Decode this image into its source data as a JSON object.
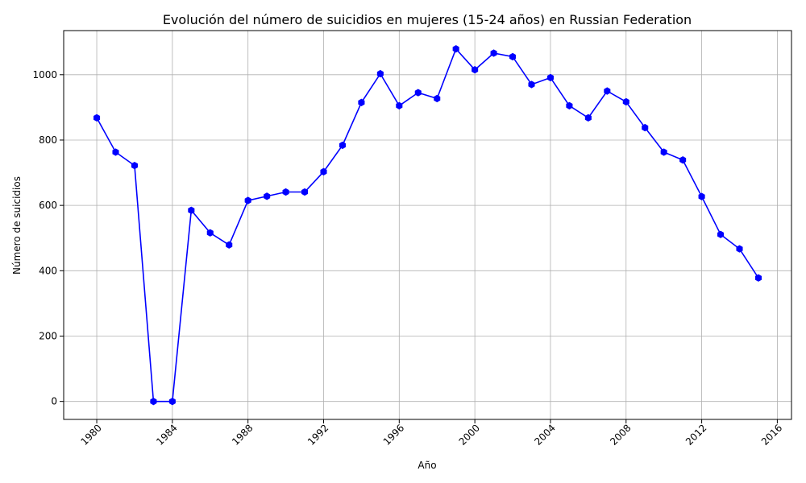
{
  "chart_data": {
    "type": "line",
    "title": "Evolución del número de suicidios en mujeres (15-24 años) en Russian Federation",
    "xlabel": "Año",
    "ylabel": "Número de suicidios",
    "xlim": [
      1978.25,
      1976.75
    ],
    "ylim": [
      -55,
      1135
    ],
    "x_ticks": [
      1980,
      1984,
      1988,
      1992,
      1996,
      2000,
      2004,
      2008,
      2012,
      2016
    ],
    "y_ticks": [
      0,
      200,
      400,
      600,
      800,
      1000
    ],
    "grid": true,
    "series": [
      {
        "color": "#0000ff",
        "marker": "hexagon",
        "x": [
          1980,
          1981,
          1982,
          1983,
          1984,
          1985,
          1986,
          1987,
          1988,
          1989,
          1990,
          1991,
          1992,
          1993,
          1994,
          1995,
          1996,
          1997,
          1998,
          1999,
          2000,
          2001,
          2002,
          2003,
          2004,
          2005,
          2006,
          2007,
          2008,
          2009,
          2010,
          2011,
          2012,
          2013,
          2014,
          2015
        ],
        "values": [
          868,
          763,
          722,
          0,
          0,
          585,
          516,
          479,
          615,
          628,
          641,
          641,
          703,
          784,
          915,
          1003,
          905,
          945,
          927,
          1079,
          1015,
          1066,
          1055,
          970,
          991,
          905,
          868,
          950,
          917,
          838,
          763,
          739,
          627,
          511,
          467,
          378
        ]
      }
    ]
  }
}
